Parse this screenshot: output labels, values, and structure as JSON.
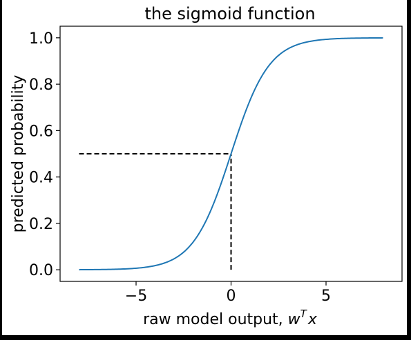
{
  "chart_data": {
    "type": "line",
    "title": "the sigmoid function",
    "xlabel_text": "raw model output, ",
    "xlabel_var": "w",
    "xlabel_sup": "T",
    "xlabel_var2": "x",
    "ylabel": "predicted probability",
    "xlim": [
      -9,
      9
    ],
    "ylim": [
      -0.05,
      1.05
    ],
    "xticks": [
      -5,
      0,
      5
    ],
    "xtick_labels": [
      "−5",
      "0",
      "5"
    ],
    "yticks": [
      0.0,
      0.2,
      0.4,
      0.6,
      0.8,
      1.0
    ],
    "ytick_labels": [
      "0.0",
      "0.2",
      "0.4",
      "0.6",
      "0.8",
      "1.0"
    ],
    "grid": false,
    "legend": "none",
    "series": [
      {
        "function": "sigmoid",
        "color": "#1f77b4",
        "x": [
          -8,
          -7,
          -6,
          -5,
          -4,
          -3,
          -2,
          -1,
          0,
          1,
          2,
          3,
          4,
          5,
          6,
          7,
          8
        ],
        "y": [
          0.0003,
          0.0009,
          0.0025,
          0.0067,
          0.018,
          0.047,
          0.119,
          0.269,
          0.5,
          0.731,
          0.881,
          0.953,
          0.982,
          0.9933,
          0.9975,
          0.9991,
          0.9997
        ]
      }
    ],
    "reference_lines": [
      {
        "style": "dashed",
        "color": "#000000",
        "x": [
          -8,
          0
        ],
        "y": [
          0.5,
          0.5
        ]
      },
      {
        "style": "dashed",
        "color": "#000000",
        "x": [
          0,
          0
        ],
        "y": [
          0.0,
          0.5
        ]
      }
    ]
  }
}
